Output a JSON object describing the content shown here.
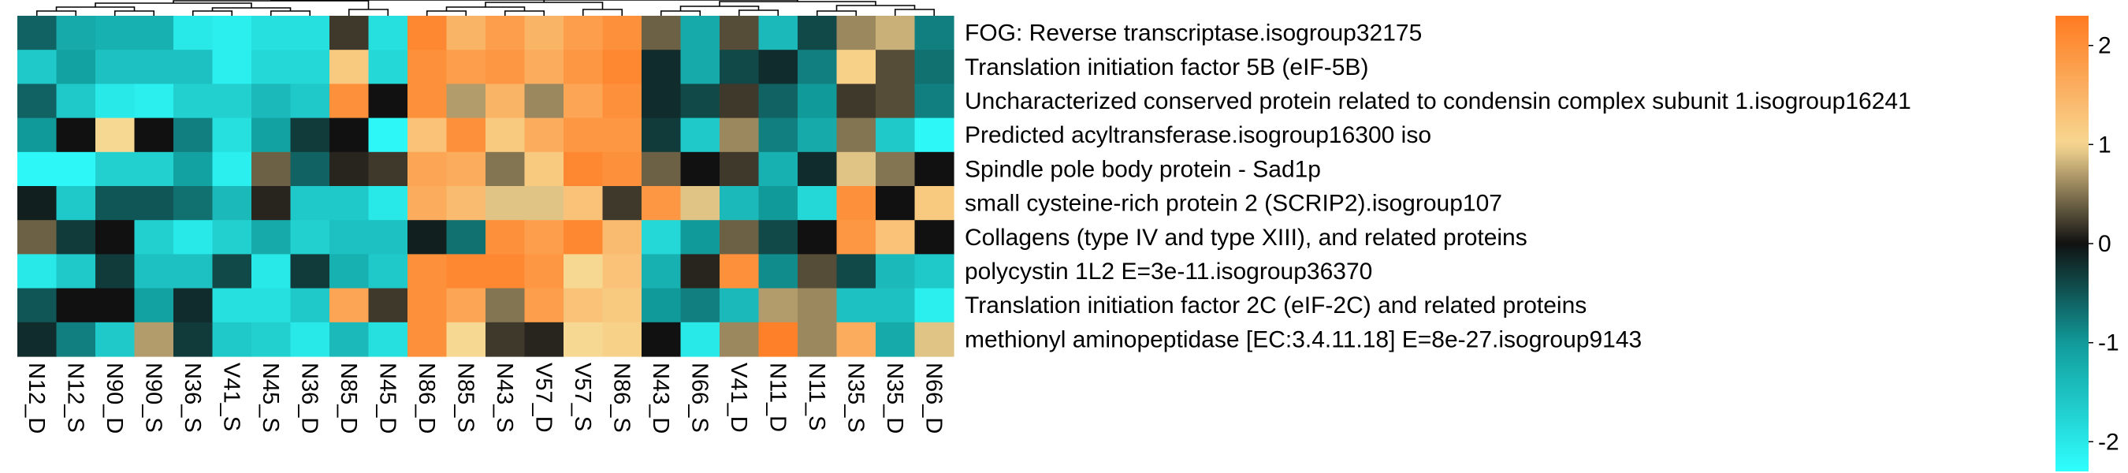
{
  "chart_data": {
    "type": "heatmap",
    "title": "",
    "xlabel": "",
    "ylabel": "",
    "grid": false,
    "legend": "right",
    "columns": [
      "N12_D",
      "N12_S",
      "N90_D",
      "N90_S",
      "N36_S",
      "V41_S",
      "N45_S",
      "N36_D",
      "N85_D",
      "N45_D",
      "N86_D",
      "N85_S",
      "N43_S",
      "V57_D",
      "V57_S",
      "N86_S",
      "N43_D",
      "N66_S",
      "V41_D",
      "N11_D",
      "N11_S",
      "N35_S",
      "N35_D",
      "N66_D"
    ],
    "rows": [
      "FOG: Reverse transcriptase.isogroup32175",
      "Translation initiation factor 5B (eIF-5B)",
      "Uncharacterized conserved protein related to condensin complex subunit 1.isogroup16241",
      "Predicted acyltransferase.isogroup16300 iso",
      "Spindle pole body protein - Sad1p",
      "small cysteine-rich protein 2 (SCRIP2).isogroup107",
      "Collagens (type IV and type XIII), and related proteins",
      "polycystin 1L2 E=3e-11.isogroup36370",
      "Translation initiation factor 2C (eIF-2C) and related proteins",
      "methionyl aminopeptidase [EC:3.4.11.18] E=8e-27.isogroup9143"
    ],
    "values": [
      [
        -0.6,
        -1.2,
        -1.3,
        -1.3,
        -2.0,
        -2.1,
        -1.9,
        -1.9,
        0.2,
        -1.9,
        2.1,
        1.5,
        1.8,
        1.5,
        1.8,
        2.0,
        0.4,
        -1.2,
        0.3,
        -1.4,
        -0.4,
        0.6,
        0.8,
        -0.8
      ],
      [
        -1.6,
        -1.1,
        -1.5,
        -1.5,
        -1.5,
        -2.1,
        -1.8,
        -1.8,
        1.2,
        -1.8,
        2.0,
        1.8,
        1.9,
        1.6,
        1.9,
        2.1,
        -0.2,
        -1.2,
        -0.4,
        -0.2,
        -0.8,
        1.1,
        0.3,
        -0.7
      ],
      [
        -0.6,
        -1.6,
        -2.0,
        -2.1,
        -1.7,
        -1.7,
        -1.4,
        -1.6,
        2.0,
        0.0,
        2.0,
        0.7,
        1.5,
        0.6,
        1.7,
        2.0,
        -0.2,
        -0.4,
        0.2,
        -0.6,
        -1.0,
        0.2,
        0.3,
        -0.8
      ],
      [
        -1.0,
        0.0,
        1.0,
        0.0,
        -0.8,
        -1.9,
        -1.1,
        -0.3,
        0.0,
        -2.2,
        1.3,
        2.0,
        1.2,
        1.6,
        1.9,
        1.9,
        -0.3,
        -1.6,
        0.6,
        -0.8,
        -1.2,
        0.5,
        -1.6,
        -2.2
      ],
      [
        -2.2,
        -2.2,
        -1.7,
        -1.7,
        -1.1,
        -2.1,
        0.4,
        -0.6,
        0.1,
        0.2,
        1.7,
        1.6,
        0.5,
        1.2,
        2.1,
        2.0,
        0.4,
        0.0,
        0.2,
        -1.3,
        -0.2,
        0.9,
        0.5,
        0.0
      ],
      [
        -0.1,
        -1.6,
        -0.5,
        -0.5,
        -0.7,
        -1.4,
        0.1,
        -1.6,
        -1.6,
        -2.0,
        1.6,
        1.4,
        0.9,
        0.9,
        1.3,
        0.2,
        1.9,
        0.9,
        -1.4,
        -1.0,
        -1.8,
        2.0,
        0.0,
        1.2
      ],
      [
        0.4,
        -0.3,
        0.0,
        -1.7,
        -2.0,
        -1.7,
        -1.2,
        -1.7,
        -1.5,
        -1.5,
        -0.1,
        -0.7,
        2.0,
        1.8,
        2.1,
        1.4,
        -1.8,
        -1.0,
        0.4,
        -0.4,
        0.0,
        1.9,
        1.3,
        0.0
      ],
      [
        -2.0,
        -1.6,
        -0.3,
        -1.5,
        -1.5,
        -0.4,
        -2.0,
        -0.3,
        -1.3,
        -1.6,
        2.0,
        2.1,
        2.1,
        1.9,
        1.0,
        1.3,
        -1.3,
        0.1,
        2.0,
        -0.9,
        0.3,
        -0.4,
        -1.4,
        -1.6
      ],
      [
        -0.5,
        0.0,
        0.0,
        -1.1,
        -0.2,
        -1.9,
        -1.9,
        -1.6,
        1.7,
        0.2,
        2.0,
        1.7,
        0.5,
        1.8,
        1.3,
        1.2,
        -1.0,
        -0.8,
        -1.4,
        0.7,
        0.6,
        -1.5,
        -1.5,
        -2.1
      ],
      [
        -0.2,
        -0.8,
        -1.6,
        0.7,
        -0.3,
        -1.6,
        -1.7,
        -2.0,
        -1.4,
        -1.9,
        2.0,
        1.0,
        0.2,
        0.1,
        1.0,
        1.1,
        0.0,
        -2.0,
        0.6,
        2.2,
        0.6,
        1.6,
        -1.2,
        0.9
      ]
    ],
    "color_scale": {
      "min": -2.3,
      "max": 2.3,
      "stops": [
        {
          "v": -2.3,
          "color": "#30FFFF"
        },
        {
          "v": -1.0,
          "color": "#119A9A"
        },
        {
          "v": 0.0,
          "color": "#111111"
        },
        {
          "v": 1.0,
          "color": "#F7D892"
        },
        {
          "v": 2.3,
          "color": "#FF7A20"
        }
      ],
      "ticks": [
        -2,
        -1,
        0,
        1,
        2
      ]
    }
  }
}
